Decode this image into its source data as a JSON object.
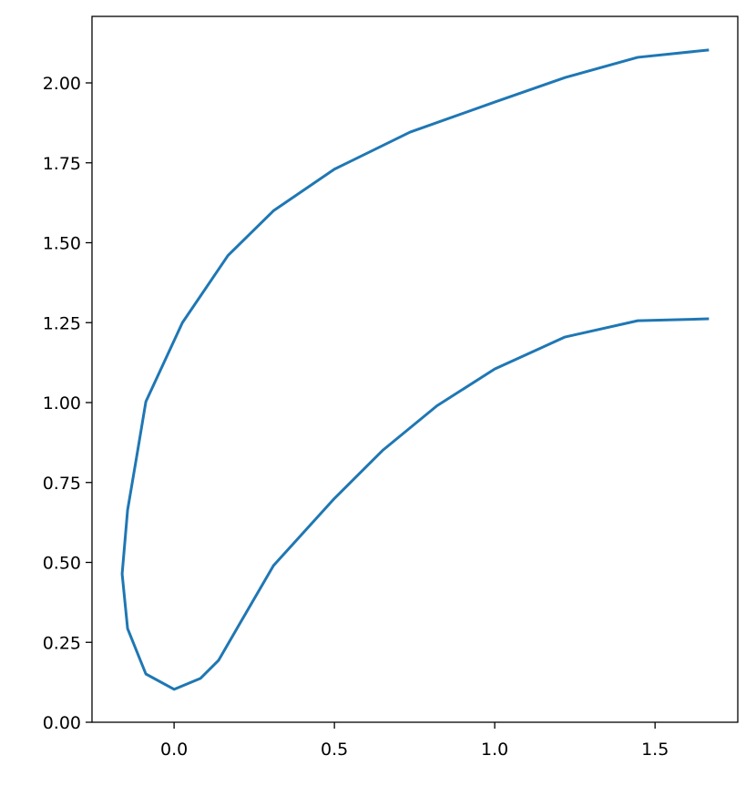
{
  "chart_data": {
    "type": "line",
    "series": [
      {
        "color": "#1f77b4",
        "x": [
          1.668,
          1.446,
          1.22,
          1.0,
          0.736,
          0.5,
          0.31,
          0.168,
          0.026,
          -0.088,
          -0.116,
          -0.145,
          -0.162,
          -0.145,
          -0.088,
          0.0,
          0.082,
          0.139,
          0.196,
          0.31,
          0.5,
          0.65,
          0.82,
          1.0,
          1.219,
          1.446,
          1.668
        ],
        "values": [
          2.103,
          2.08,
          2.017,
          1.94,
          1.846,
          1.73,
          1.6,
          1.46,
          1.25,
          1.003,
          0.835,
          0.664,
          0.464,
          0.293,
          0.151,
          0.103,
          0.137,
          0.194,
          0.293,
          0.49,
          0.7,
          0.85,
          0.99,
          1.105,
          1.205,
          1.256,
          1.262
        ]
      }
    ],
    "xlim": [
      -0.256,
      1.758
    ],
    "ylim": [
      0,
      2.208
    ],
    "xticks": [
      {
        "value": 0,
        "label": "0.0"
      },
      0.5,
      {
        "value": 1,
        "label": "1.0"
      },
      1.5
    ],
    "yticks": [
      {
        "value": 0,
        "label": "0.00"
      },
      0.25,
      {
        "value": 0.5,
        "label": "0.50"
      },
      0.75,
      {
        "value": 1,
        "label": "1.00"
      },
      1.25,
      {
        "value": 1.5,
        "label": "1.50"
      },
      1.75,
      {
        "value": 2,
        "label": "2.00"
      }
    ],
    "grid": false
  }
}
